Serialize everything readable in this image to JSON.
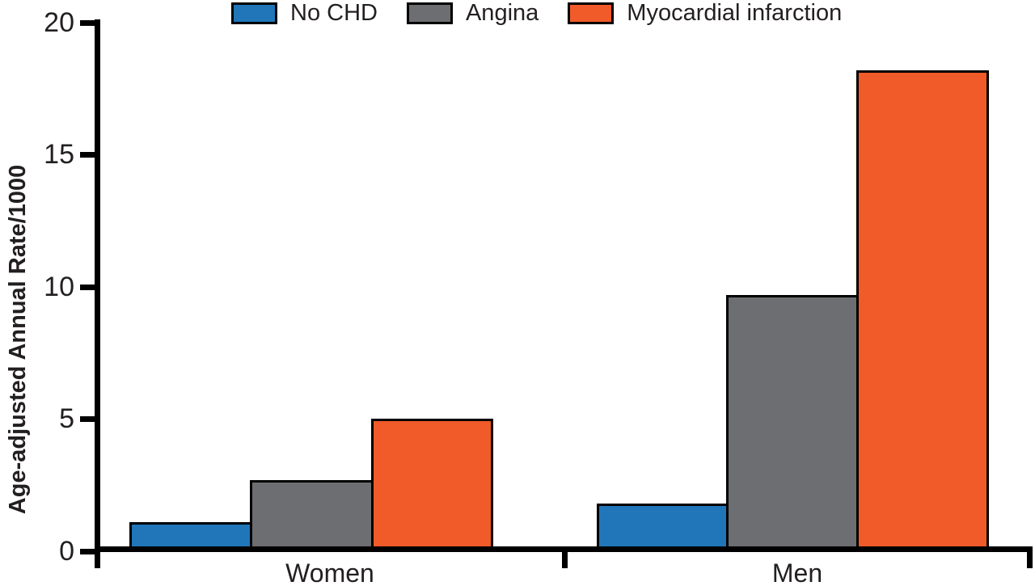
{
  "chart_data": {
    "type": "bar",
    "title": "",
    "xlabel": "",
    "ylabel": "Age-adjusted Annual Rate/1000",
    "ylim": [
      0,
      20
    ],
    "yticks": [
      0,
      5,
      10,
      15,
      20
    ],
    "categories": [
      "Women",
      "Men"
    ],
    "series": [
      {
        "name": "No CHD",
        "color": "#2076B8",
        "values": [
          1.1,
          1.8
        ]
      },
      {
        "name": "Angina",
        "color": "#6D6E71",
        "values": [
          2.7,
          9.7
        ]
      },
      {
        "name": "Myocardial infarction",
        "color": "#F15A29",
        "values": [
          5.0,
          18.2
        ]
      }
    ],
    "legend_position": "top",
    "grid": false,
    "bar_outline_color": "#000000",
    "axis_color": "#000000",
    "text_color": "#231F20"
  }
}
